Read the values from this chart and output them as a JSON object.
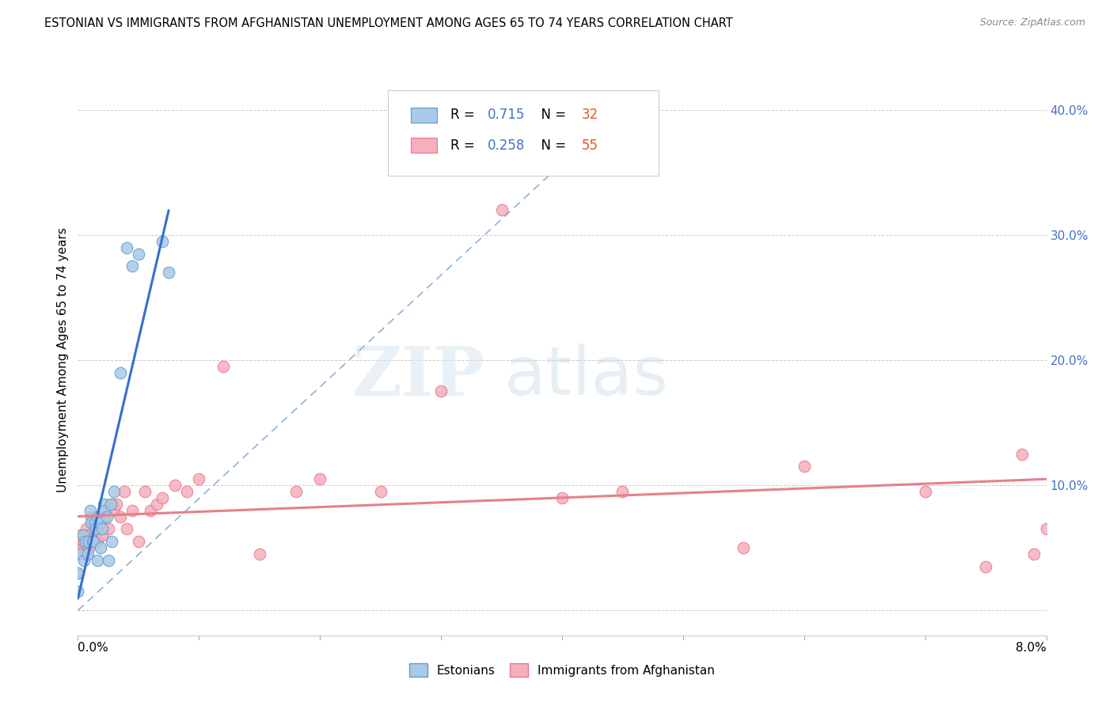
{
  "title": "ESTONIAN VS IMMIGRANTS FROM AFGHANISTAN UNEMPLOYMENT AMONG AGES 65 TO 74 YEARS CORRELATION CHART",
  "source": "Source: ZipAtlas.com",
  "ylabel": "Unemployment Among Ages 65 to 74 years",
  "xlim": [
    0.0,
    8.0
  ],
  "ylim": [
    -2.0,
    42.0
  ],
  "ytick_vals": [
    0,
    10,
    20,
    30,
    40
  ],
  "ytick_labels": [
    "",
    "10.0%",
    "20.0%",
    "30.0%",
    "40.0%"
  ],
  "estonians_color_fill": "#aac8e8",
  "estonians_color_edge": "#5a9ec8",
  "afghanistan_color_fill": "#f4b0bc",
  "afghanistan_color_edge": "#e87888",
  "regression_estonians_color": "#3570cc",
  "regression_afghanistan_color": "#e8808a",
  "diagonal_color": "#90b0d8",
  "ytick_color": "#4472c4",
  "watermark_zip": "ZIP",
  "watermark_atlas": "atlas",
  "legend_r1": "0.715",
  "legend_n1": "32",
  "legend_r2": "0.258",
  "legend_n2": "55",
  "r_color": "#4472c4",
  "n_color": "#e05820",
  "estonians_x": [
    0.0,
    0.0,
    0.02,
    0.04,
    0.05,
    0.06,
    0.08,
    0.09,
    0.1,
    0.11,
    0.12,
    0.13,
    0.14,
    0.15,
    0.16,
    0.17,
    0.18,
    0.19,
    0.2,
    0.21,
    0.22,
    0.24,
    0.25,
    0.27,
    0.28,
    0.3,
    0.35,
    0.4,
    0.45,
    0.5,
    0.7,
    0.75
  ],
  "estonians_y": [
    1.5,
    3.0,
    4.5,
    6.0,
    4.0,
    5.5,
    4.5,
    5.5,
    8.0,
    7.0,
    5.5,
    5.5,
    7.0,
    6.5,
    4.0,
    7.5,
    7.0,
    5.0,
    6.5,
    8.5,
    8.0,
    7.5,
    4.0,
    8.5,
    5.5,
    9.5,
    19.0,
    29.0,
    27.5,
    28.5,
    29.5,
    27.0
  ],
  "afghanistan_x": [
    0.0,
    0.0,
    0.01,
    0.02,
    0.03,
    0.04,
    0.05,
    0.06,
    0.07,
    0.08,
    0.09,
    0.1,
    0.11,
    0.12,
    0.13,
    0.14,
    0.15,
    0.16,
    0.17,
    0.18,
    0.19,
    0.2,
    0.22,
    0.25,
    0.28,
    0.3,
    0.32,
    0.35,
    0.38,
    0.4,
    0.45,
    0.5,
    0.55,
    0.6,
    0.65,
    0.7,
    0.8,
    0.9,
    1.0,
    1.2,
    1.5,
    1.8,
    2.0,
    2.5,
    3.0,
    3.5,
    4.0,
    4.5,
    5.5,
    6.0,
    7.0,
    7.5,
    7.8,
    7.9,
    8.0
  ],
  "afghanistan_y": [
    5.0,
    3.0,
    4.5,
    6.0,
    5.5,
    5.0,
    5.5,
    4.5,
    6.5,
    6.0,
    5.0,
    5.5,
    7.5,
    7.0,
    7.5,
    6.5,
    6.0,
    5.5,
    6.5,
    7.0,
    7.5,
    6.0,
    7.5,
    6.5,
    8.5,
    8.0,
    8.5,
    7.5,
    9.5,
    6.5,
    8.0,
    5.5,
    9.5,
    8.0,
    8.5,
    9.0,
    10.0,
    9.5,
    10.5,
    19.5,
    4.5,
    9.5,
    10.5,
    9.5,
    17.5,
    32.0,
    9.0,
    9.5,
    5.0,
    11.5,
    9.5,
    3.5,
    12.5,
    4.5,
    6.5
  ]
}
